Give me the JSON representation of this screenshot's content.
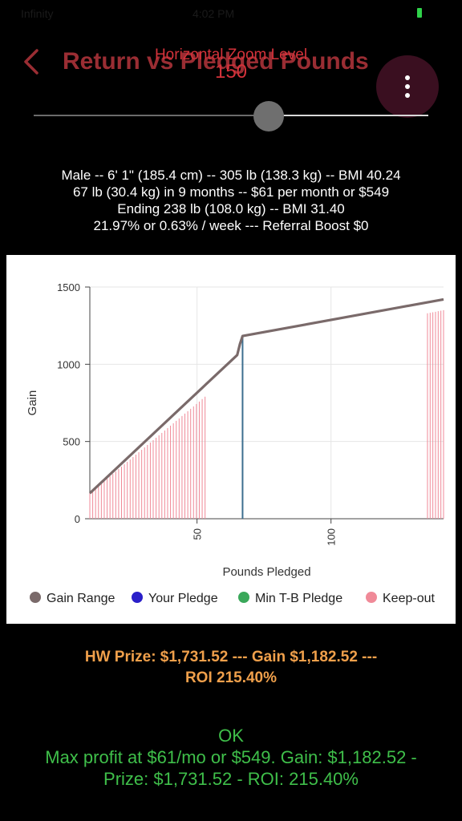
{
  "status": {
    "left": "Infinity",
    "center": "4:02 PM"
  },
  "header": {
    "title": "Return vs Pledged Pounds",
    "zoom_label": "Horizontal Zoom Level",
    "zoom_value": "150"
  },
  "summary": {
    "line1": "Male -- 6' 1\" (185.4 cm) -- 305 lb (138.3 kg) -- BMI 40.24",
    "line2": "67 lb (30.4 kg) in 9 months -- $61 per month or $549",
    "line3": "Ending 238 lb (108.0 kg) -- BMI 31.40",
    "line4": "21.97% or 0.63% / week --- Referral Boost $0"
  },
  "chart_data": {
    "type": "line",
    "xlabel": "Pounds Pledged",
    "ylabel": "Gain",
    "xlim": [
      10,
      142
    ],
    "ylim": [
      0,
      1500
    ],
    "x_ticks": [
      "50",
      "100"
    ],
    "y_ticks": [
      "0",
      "500",
      "1000",
      "1500"
    ],
    "grid": true,
    "legend": "bottom",
    "series": [
      {
        "name": "Gain Range",
        "color": "#7a6a6a",
        "x": [
          10,
          65,
          66,
          67,
          142
        ],
        "y": [
          165,
          1060,
          1130,
          1183,
          1420
        ]
      },
      {
        "name": "Your Pledge",
        "color": "#2a1fc9",
        "x": [
          67,
          67
        ],
        "y": [
          0,
          1183
        ]
      },
      {
        "name": "Min T-B Pledge",
        "color": "#3aa85a",
        "x": [],
        "y": []
      },
      {
        "name": "Keep-out",
        "color": "#f08a98",
        "ranges": [
          [
            10,
            53,
            165,
            790
          ],
          [
            136,
            142,
            1330,
            1350
          ]
        ]
      }
    ]
  },
  "prize": {
    "line1": "HW Prize: $1,731.52 --- Gain $1,182.52 ---",
    "line2": "ROI 215.40%"
  },
  "result": {
    "status": "OK",
    "line1": "Max profit at $61/mo or $549. Gain: $1,182.52 -",
    "line2": "Prize: $1,731.52 - ROI: 215.40%"
  },
  "icons": {
    "back": "chevron-left-icon",
    "menu": "more-vertical-icon"
  }
}
